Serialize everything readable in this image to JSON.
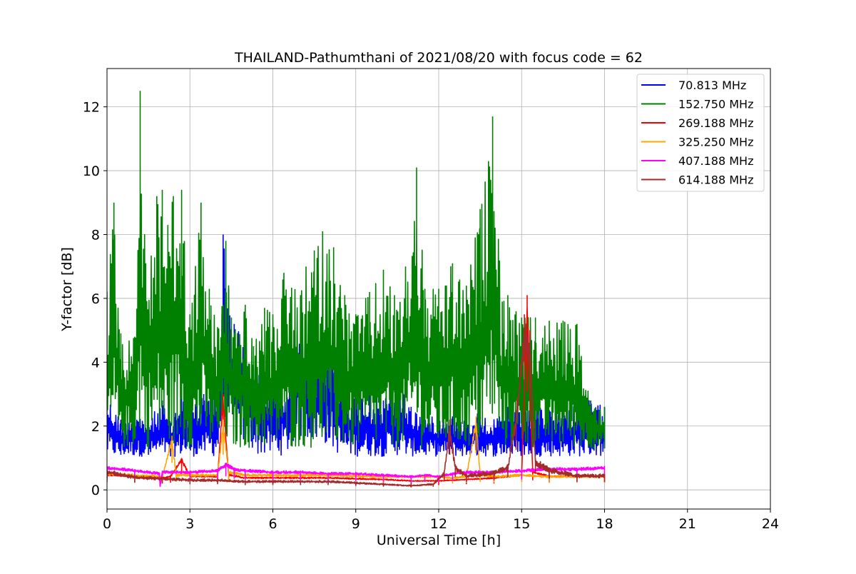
{
  "chart_data": {
    "type": "line",
    "title": "THAILAND-Pathumthani of 2021/08/20 with focus code = 62",
    "xlabel": "Universal Time [h]",
    "ylabel": "Y-factor [dB]",
    "xlim": [
      0,
      24
    ],
    "ylim": [
      -0.6,
      13.2
    ],
    "xticks": [
      0,
      3,
      6,
      9,
      12,
      15,
      18,
      21,
      24
    ],
    "yticks": [
      0,
      2,
      4,
      6,
      8,
      10,
      12
    ],
    "grid": true,
    "legend_position": "top-right",
    "data_x_range": [
      0,
      18
    ],
    "series": [
      {
        "name": " 70.813 MHz",
        "color": "#0000ff",
        "points": [
          [
            0,
            3.0
          ],
          [
            0.5,
            2.2
          ],
          [
            1.0,
            2.5
          ],
          [
            1.5,
            2.2
          ],
          [
            2.0,
            2.8
          ],
          [
            2.3,
            2.1
          ],
          [
            2.7,
            3.2
          ],
          [
            3.0,
            2.6
          ],
          [
            3.5,
            3.0
          ],
          [
            4.0,
            3.2
          ],
          [
            4.2,
            8.0
          ],
          [
            4.4,
            6.3
          ],
          [
            4.6,
            5.2
          ],
          [
            5.0,
            4.7
          ],
          [
            5.5,
            3.6
          ],
          [
            6.0,
            3.5
          ],
          [
            6.5,
            3.7
          ],
          [
            7.0,
            5.4
          ],
          [
            7.5,
            5.0
          ],
          [
            8.0,
            4.7
          ],
          [
            8.5,
            3.4
          ],
          [
            9.0,
            3.1
          ],
          [
            9.5,
            3.0
          ],
          [
            10.0,
            2.8
          ],
          [
            10.5,
            3.6
          ],
          [
            11.0,
            2.6
          ],
          [
            11.5,
            2.4
          ],
          [
            12.0,
            2.4
          ],
          [
            12.5,
            2.3
          ],
          [
            13.0,
            2.2
          ],
          [
            13.5,
            2.5
          ],
          [
            14.0,
            2.2
          ],
          [
            14.5,
            2.6
          ],
          [
            15.0,
            2.4
          ],
          [
            15.5,
            2.6
          ],
          [
            16.0,
            2.5
          ],
          [
            16.5,
            2.4
          ],
          [
            17.0,
            2.9
          ],
          [
            17.5,
            2.8
          ],
          [
            18.0,
            2.6
          ]
        ]
      },
      {
        "name": "152.750 MHz",
        "color": "#008000",
        "points": [
          [
            0,
            6.2
          ],
          [
            0.25,
            9.0
          ],
          [
            0.5,
            4.9
          ],
          [
            1.0,
            4.8
          ],
          [
            1.2,
            12.5
          ],
          [
            1.4,
            7.1
          ],
          [
            1.8,
            9.2
          ],
          [
            2.0,
            9.4
          ],
          [
            2.2,
            8.3
          ],
          [
            2.4,
            9.2
          ],
          [
            2.7,
            9.4
          ],
          [
            3.0,
            5.5
          ],
          [
            3.4,
            9.0
          ],
          [
            3.7,
            6.3
          ],
          [
            4.0,
            5.1
          ],
          [
            4.3,
            7.8
          ],
          [
            4.5,
            5.4
          ],
          [
            5.0,
            5.8
          ],
          [
            5.3,
            4.5
          ],
          [
            5.7,
            5.7
          ],
          [
            6.0,
            5.5
          ],
          [
            6.4,
            6.8
          ],
          [
            7.0,
            6.1
          ],
          [
            7.2,
            7.0
          ],
          [
            7.5,
            7.5
          ],
          [
            7.8,
            8.1
          ],
          [
            8.2,
            7.6
          ],
          [
            8.6,
            6.1
          ],
          [
            9.0,
            5.5
          ],
          [
            9.5,
            6.2
          ],
          [
            10.0,
            6.9
          ],
          [
            10.4,
            6.1
          ],
          [
            10.8,
            7.0
          ],
          [
            11.2,
            10.1
          ],
          [
            11.5,
            6.3
          ],
          [
            12.0,
            6.3
          ],
          [
            12.5,
            7.1
          ],
          [
            13.0,
            6.4
          ],
          [
            13.5,
            8.8
          ],
          [
            13.8,
            10.3
          ],
          [
            13.95,
            11.7
          ],
          [
            14.3,
            5.9
          ],
          [
            14.5,
            6.1
          ],
          [
            15.0,
            5.4
          ],
          [
            15.5,
            5.4
          ],
          [
            16.0,
            5.3
          ],
          [
            16.5,
            5.3
          ],
          [
            17.0,
            5.2
          ],
          [
            17.5,
            2.8
          ],
          [
            18.0,
            2.6
          ]
        ]
      },
      {
        "name": "269.188 MHz",
        "color": "#ff0000",
        "points": [
          [
            0,
            0.5
          ],
          [
            1.0,
            0.45
          ],
          [
            2.0,
            0.4
          ],
          [
            2.3,
            0.45
          ],
          [
            2.7,
            1.0
          ],
          [
            3.0,
            0.45
          ],
          [
            4.0,
            0.45
          ],
          [
            4.2,
            3.0
          ],
          [
            4.4,
            0.5
          ],
          [
            5.0,
            0.4
          ],
          [
            6.0,
            0.4
          ],
          [
            8.0,
            0.4
          ],
          [
            10.0,
            0.35
          ],
          [
            11.0,
            0.3
          ],
          [
            12.0,
            0.3
          ],
          [
            13.0,
            0.35
          ],
          [
            14.0,
            0.4
          ],
          [
            15.0,
            0.5
          ],
          [
            15.2,
            6.1
          ],
          [
            15.4,
            0.6
          ],
          [
            16.0,
            0.45
          ],
          [
            17.0,
            0.45
          ],
          [
            18.0,
            0.45
          ]
        ]
      },
      {
        "name": "325.250 MHz",
        "color": "#ffa500",
        "points": [
          [
            0,
            0.55
          ],
          [
            1.0,
            0.5
          ],
          [
            2.0,
            0.45
          ],
          [
            2.35,
            1.7
          ],
          [
            2.5,
            0.5
          ],
          [
            3.0,
            0.5
          ],
          [
            4.0,
            0.5
          ],
          [
            4.2,
            2.2
          ],
          [
            4.4,
            0.6
          ],
          [
            5.0,
            0.5
          ],
          [
            6.0,
            0.5
          ],
          [
            8.0,
            0.5
          ],
          [
            10.0,
            0.45
          ],
          [
            12.0,
            0.45
          ],
          [
            12.5,
            0.4
          ],
          [
            13.0,
            0.45
          ],
          [
            13.35,
            2.3
          ],
          [
            13.5,
            0.5
          ],
          [
            14.0,
            0.45
          ],
          [
            15.0,
            0.5
          ],
          [
            16.0,
            0.45
          ],
          [
            17.0,
            0.45
          ],
          [
            18.0,
            0.45
          ]
        ]
      },
      {
        "name": "407.188 MHz",
        "color": "#ff00ff",
        "points": [
          [
            0,
            0.75
          ],
          [
            1.0,
            0.65
          ],
          [
            1.9,
            0.55
          ],
          [
            1.9,
            0.0
          ],
          [
            2.0,
            0.6
          ],
          [
            3.0,
            0.6
          ],
          [
            4.0,
            0.65
          ],
          [
            4.3,
            0.85
          ],
          [
            4.6,
            0.7
          ],
          [
            5.0,
            0.65
          ],
          [
            6.0,
            0.6
          ],
          [
            7.0,
            0.6
          ],
          [
            8.0,
            0.55
          ],
          [
            9.0,
            0.55
          ],
          [
            10.0,
            0.5
          ],
          [
            11.0,
            0.45
          ],
          [
            11.5,
            0.5
          ],
          [
            12.0,
            0.45
          ],
          [
            12.5,
            0.55
          ],
          [
            13.0,
            0.6
          ],
          [
            14.0,
            0.6
          ],
          [
            15.0,
            0.65
          ],
          [
            16.0,
            0.7
          ],
          [
            17.0,
            0.7
          ],
          [
            18.0,
            0.75
          ]
        ]
      },
      {
        "name": "614.188 MHz",
        "color": "#a52a2a",
        "points": [
          [
            0,
            0.65
          ],
          [
            1.0,
            0.45
          ],
          [
            2.0,
            0.4
          ],
          [
            3.0,
            0.35
          ],
          [
            4.0,
            0.35
          ],
          [
            5.0,
            0.3
          ],
          [
            6.0,
            0.3
          ],
          [
            7.0,
            0.3
          ],
          [
            8.0,
            0.3
          ],
          [
            9.0,
            0.25
          ],
          [
            10.0,
            0.2
          ],
          [
            11.0,
            0.15
          ],
          [
            11.8,
            0.2
          ],
          [
            12.2,
            0.6
          ],
          [
            12.4,
            2.2
          ],
          [
            12.6,
            0.8
          ],
          [
            13.0,
            0.5
          ],
          [
            14.0,
            0.6
          ],
          [
            14.5,
            0.8
          ],
          [
            14.8,
            2.5
          ],
          [
            15.1,
            5.5
          ],
          [
            15.3,
            5.0
          ],
          [
            15.5,
            1.0
          ],
          [
            16.0,
            0.7
          ],
          [
            17.0,
            0.5
          ],
          [
            18.0,
            0.5
          ]
        ]
      }
    ]
  }
}
